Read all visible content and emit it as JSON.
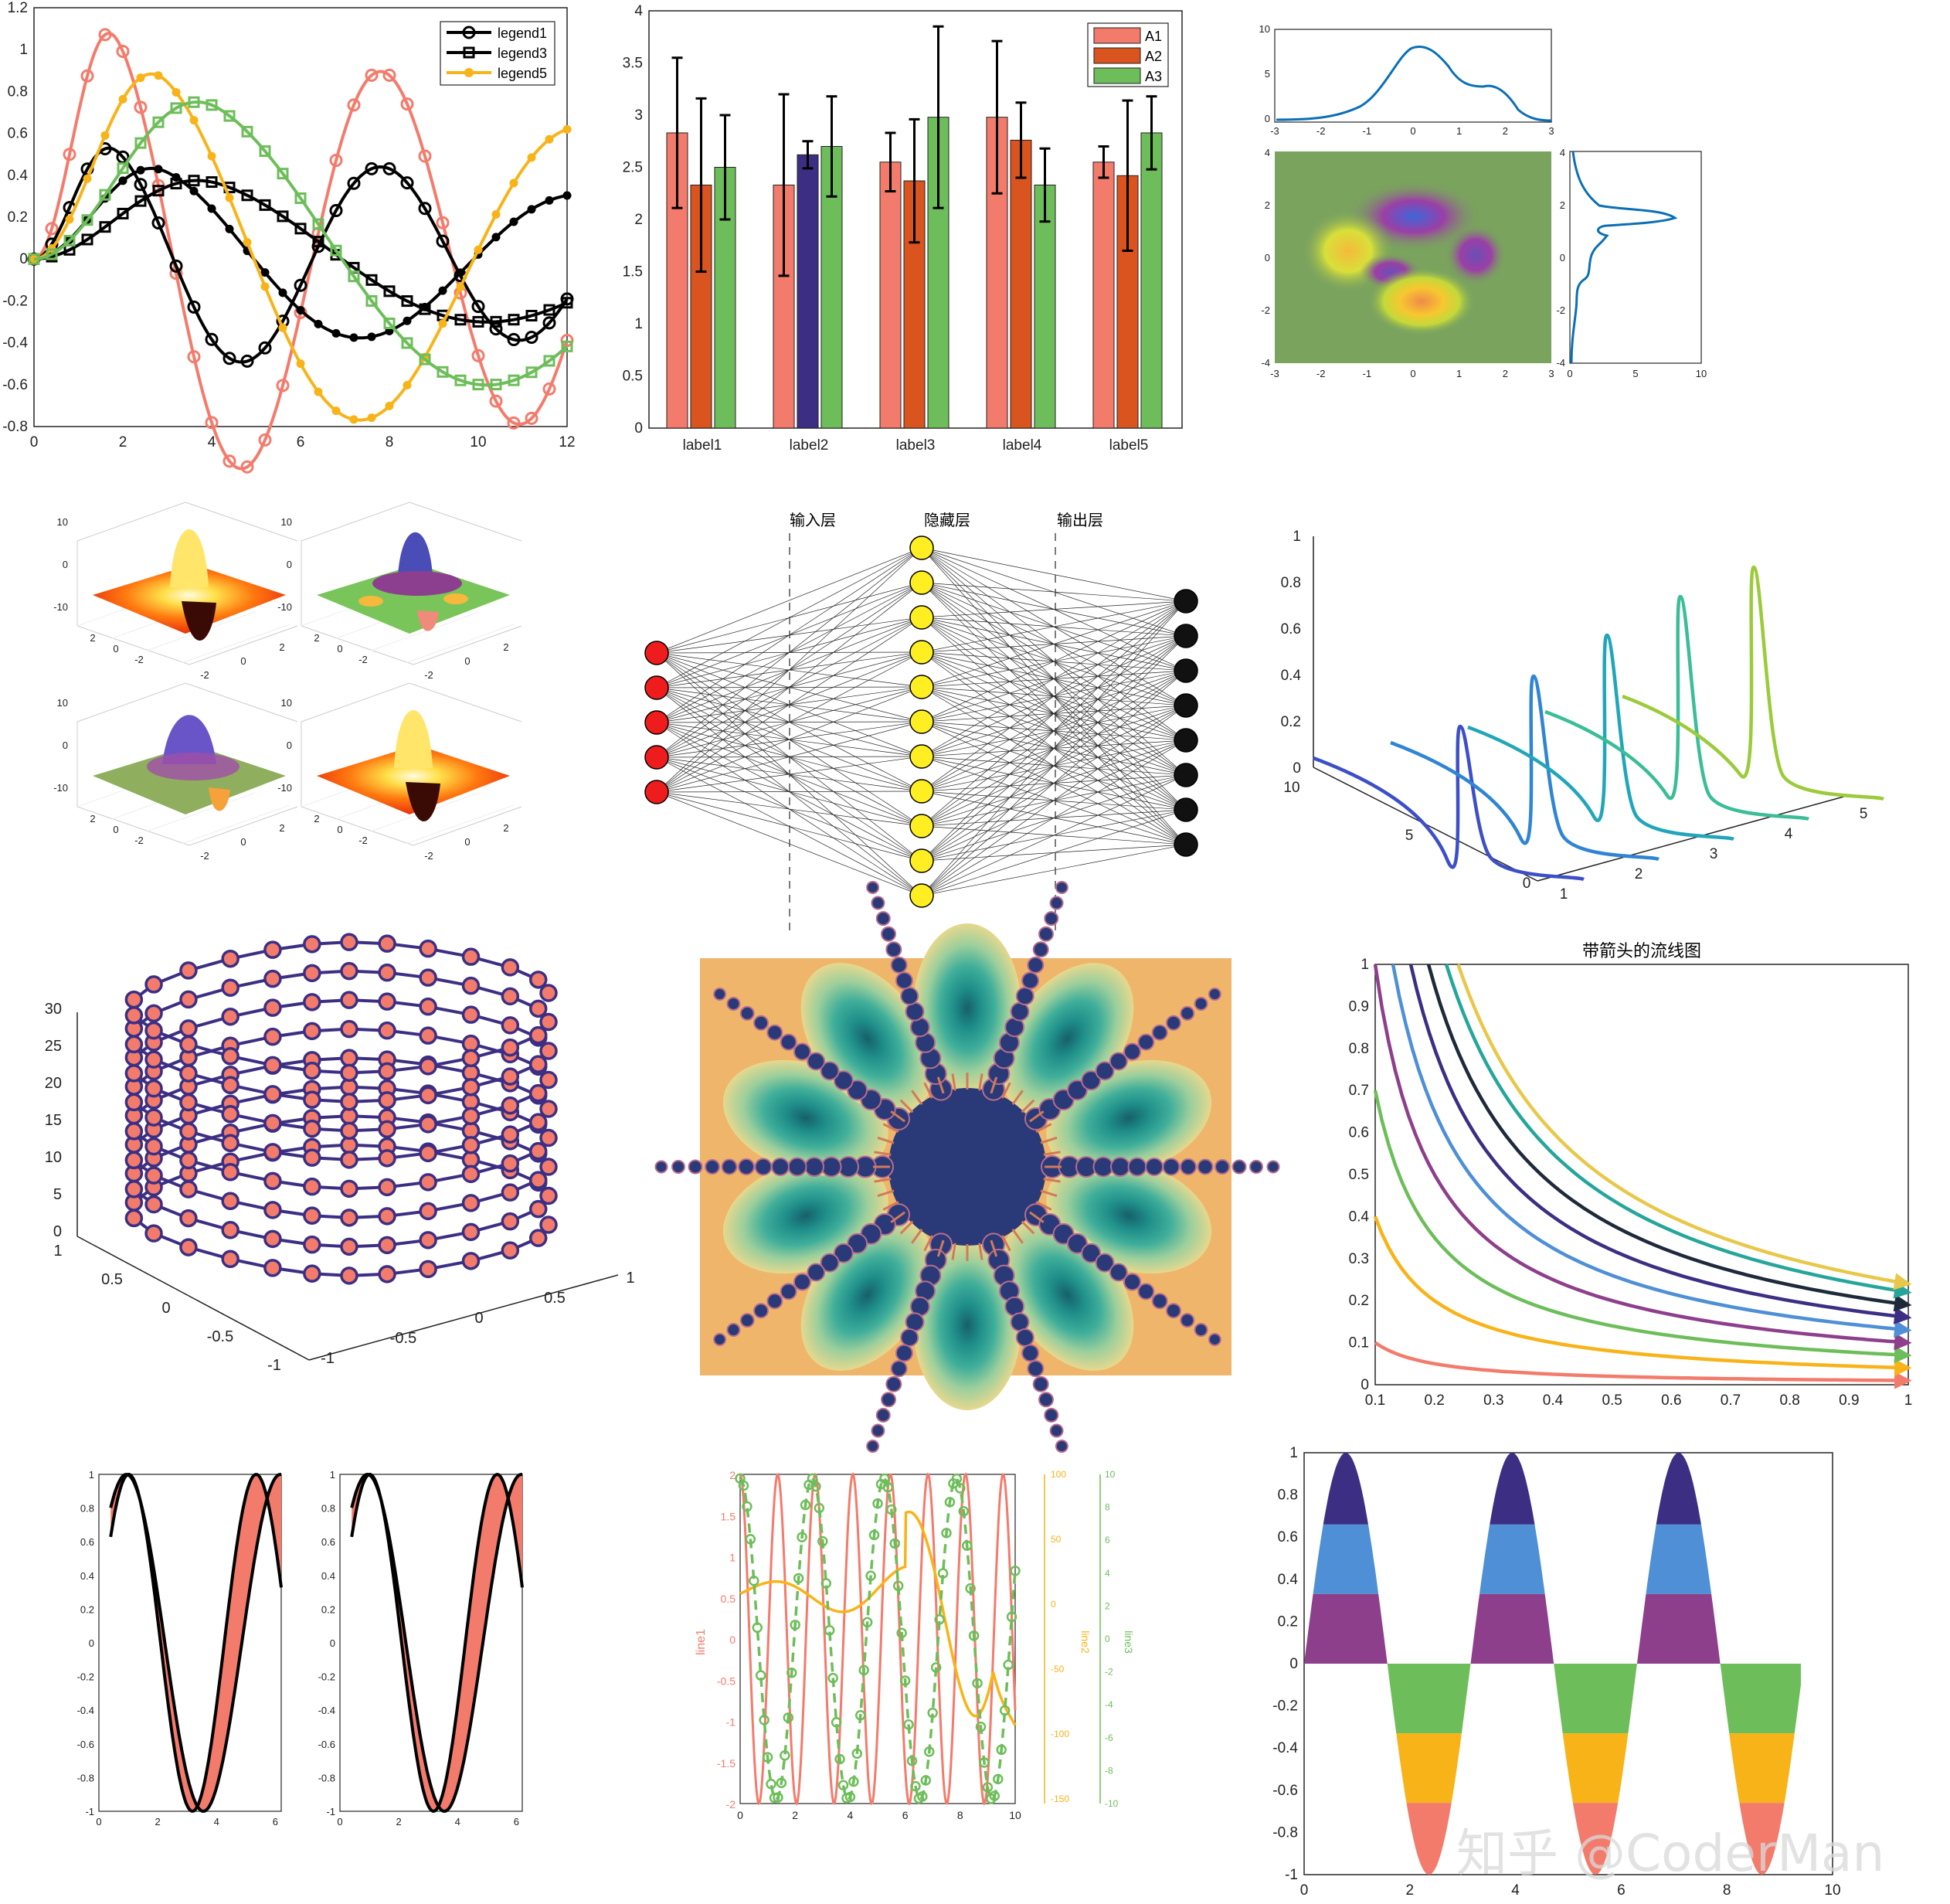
{
  "watermark": "知乎 @CoderMan",
  "colors": {
    "salmon": "#F37B6C",
    "orange": "#F8B318",
    "green": "#6DBE5A",
    "navy": "#3C2F83",
    "blue": "#4E8FD6",
    "purple": "#8E3F8C",
    "dark": "#1E2A3A",
    "teal": "#26A69A",
    "rust": "#D9541E",
    "gray": "#7AA35E"
  },
  "chart_data": [
    {
      "type": "line",
      "x": [
        0,
        2,
        4,
        6,
        8,
        10,
        12
      ],
      "xlim": [
        0,
        12
      ],
      "ylim": [
        -0.8,
        1.2
      ],
      "xticks": [
        "0",
        "2",
        "4",
        "6",
        "8",
        "10",
        "12"
      ],
      "yticks": [
        "1.2",
        "1",
        "0.8",
        "0.6",
        "0.4",
        "0.2",
        "0",
        "-0.2",
        "-0.4",
        "-0.6",
        "-0.8"
      ],
      "legend": [
        "legend1",
        "legend3",
        "legend5"
      ],
      "legend_position": "top-right",
      "series": [
        {
          "marker": "circle",
          "color": "#F37B6C",
          "peak": 1.16,
          "peak_x": 1.9
        },
        {
          "name": "legend1",
          "marker": "circle",
          "color": "#000000",
          "peak": 0.57,
          "peak_x": 1.9
        },
        {
          "marker": "dot",
          "color": "#000000",
          "peak": 0.48,
          "peak_x": 3.0
        },
        {
          "name": "legend3",
          "marker": "square",
          "color": "#000000",
          "peak": 0.43,
          "peak_x": 4.2
        },
        {
          "name": "legend5",
          "marker": "dot",
          "color": "#F8B318",
          "peak": 0.98,
          "peak_x": 3.0
        },
        {
          "marker": "square",
          "color": "#6DBE5A",
          "peak": 0.86,
          "peak_x": 4.2
        }
      ]
    },
    {
      "type": "bar",
      "categories": [
        "label1",
        "label2",
        "label3",
        "label4",
        "label5"
      ],
      "ylim": [
        0,
        4
      ],
      "yticks": [
        "0",
        "0.5",
        "1",
        "1.5",
        "2",
        "2.5",
        "3",
        "3.5",
        "4"
      ],
      "legend_position": "top-right",
      "series": [
        {
          "name": "A1",
          "values": [
            2.83,
            2.33,
            2.55,
            2.98,
            2.55
          ],
          "err": [
            0.72,
            0.87,
            0.28,
            0.73,
            0.15
          ]
        },
        {
          "name": "A2",
          "values": [
            2.33,
            2.62,
            2.37,
            2.76,
            2.42
          ],
          "err": [
            0.83,
            0.13,
            0.59,
            0.36,
            0.72
          ]
        },
        {
          "name": "A3",
          "values": [
            2.5,
            2.7,
            2.98,
            2.33,
            2.83
          ],
          "err": [
            0.5,
            0.48,
            0.87,
            0.35,
            0.35
          ]
        }
      ]
    },
    {
      "type": "heatmap",
      "xticks": [
        "-3",
        "-2",
        "-1",
        "0",
        "1",
        "2",
        "3"
      ],
      "yticks": [
        "4",
        "2",
        "0",
        "-2",
        "-4"
      ],
      "top_marginal_yticks": [
        "10",
        "5",
        "0"
      ],
      "right_marginal_xticks": [
        "0",
        "5",
        "10"
      ]
    },
    {
      "type": "area",
      "panels": 4,
      "zticks": [
        "10",
        "0",
        "-10"
      ],
      "xticks": [
        "2",
        "0",
        "-2"
      ],
      "yticks": [
        "-2",
        "0",
        "2"
      ]
    },
    {
      "type": "diagram",
      "layers": [
        {
          "label": "输入层",
          "nodes": 5
        },
        {
          "label": "隐藏层",
          "nodes": 11
        },
        {
          "label": "输出层",
          "nodes": 8
        }
      ]
    },
    {
      "type": "line",
      "zticks": [
        "1",
        "0.8",
        "0.6",
        "0.4",
        "0.2",
        "0"
      ],
      "yticks": [
        "10",
        "5",
        "0"
      ],
      "xticks": [
        "1",
        "2",
        "3",
        "4",
        "5"
      ],
      "series_peaks": [
        0.66,
        0.79,
        0.88,
        0.96,
        1.0
      ]
    },
    {
      "type": "scatter",
      "zlim": [
        0,
        30
      ],
      "zticks": [
        "30",
        "25",
        "20",
        "15",
        "10",
        "5",
        "0"
      ],
      "xticks": [
        "1",
        "0.5",
        "0",
        "-0.5",
        "-1"
      ],
      "yticks": [
        "-1",
        "-0.5",
        "0",
        "0.5",
        "1"
      ],
      "turns": 8
    },
    {
      "type": "heatmap",
      "petals": 10
    },
    {
      "type": "line",
      "title": "带箭头的流线图",
      "xlim": [
        0.1,
        1
      ],
      "ylim": [
        0,
        1
      ],
      "xticks": [
        "0.1",
        "0.2",
        "0.3",
        "0.4",
        "0.5",
        "0.6",
        "0.7",
        "0.8",
        "0.9",
        "1"
      ],
      "yticks": [
        "1",
        "0.9",
        "0.8",
        "0.7",
        "0.6",
        "0.5",
        "0.4",
        "0.3",
        "0.2",
        "0.1",
        "0"
      ],
      "curve_constants": [
        0.1,
        0.2,
        0.3,
        0.4,
        0.5,
        0.6,
        0.7,
        0.8,
        0.9
      ]
    },
    {
      "type": "area",
      "panels": 2,
      "xlim": [
        0,
        6.2
      ],
      "ylim": [
        -1,
        1
      ],
      "xticks": [
        "0",
        "2",
        "4",
        "6"
      ],
      "yticks": [
        "1",
        "0.8",
        "0.6",
        "0.4",
        "0.2",
        "0",
        "-0.2",
        "-0.4",
        "-0.6",
        "-0.8",
        "-1"
      ]
    },
    {
      "type": "line",
      "xlim": [
        0,
        10
      ],
      "xticks": [
        "0",
        "2",
        "4",
        "6",
        "8",
        "10"
      ],
      "ylabels": [
        "line1",
        "line2",
        "line3"
      ],
      "y1ticks": [
        "2",
        "1.5",
        "1",
        "0.5",
        "0",
        "-0.5",
        "-1",
        "-1.5",
        "-2"
      ],
      "y2ticks": [
        "100",
        "50",
        "0",
        "-50",
        "-100",
        "-150"
      ],
      "y3ticks": [
        "10",
        "8",
        "6",
        "4",
        "2",
        "0",
        "-2",
        "-4",
        "-6",
        "-8",
        "-10"
      ]
    },
    {
      "type": "area",
      "xlim": [
        0,
        10
      ],
      "ylim": [
        -1,
        1
      ],
      "xticks": [
        "0",
        "2",
        "4",
        "6",
        "8",
        "10"
      ],
      "yticks": [
        "1",
        "0.8",
        "0.6",
        "0.4",
        "0.2",
        "0",
        "-0.2",
        "-0.4",
        "-0.6",
        "-0.8",
        "-1"
      ],
      "bands": [
        1,
        0.66,
        0.33,
        0,
        -0.33,
        -0.66,
        -1
      ]
    }
  ]
}
